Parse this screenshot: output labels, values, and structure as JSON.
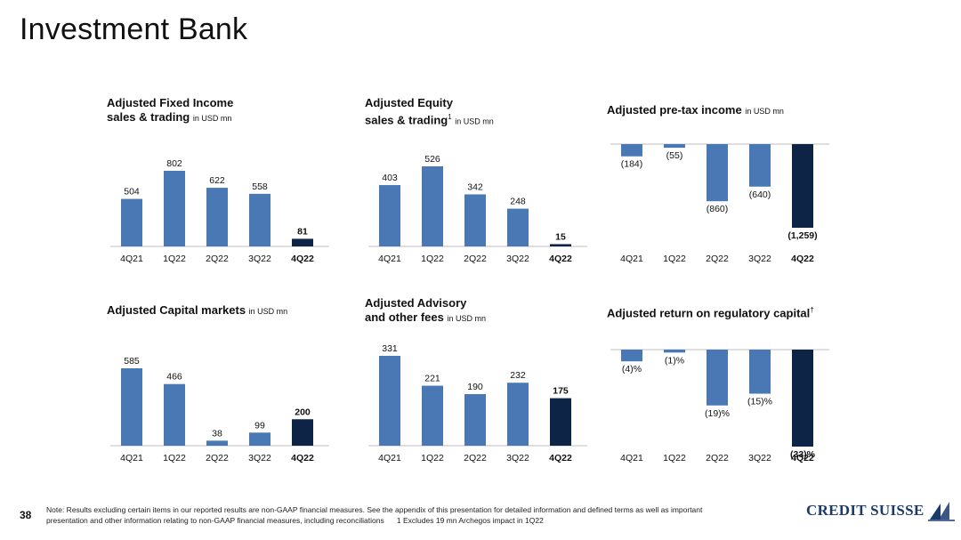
{
  "page": {
    "title": "Investment Bank",
    "page_number": "38",
    "footnote_line1": "Note: Results excluding certain items in our reported results are non-GAAP financial measures. See the appendix of this presentation for detailed information and defined terms as well as important",
    "footnote_line2": "presentation and other information relating to non-GAAP financial measures, including reconciliations      1 Excludes 19 mn Archegos impact in 1Q22",
    "logo_text": "CREDIT SUISSE"
  },
  "colors": {
    "bar": "#4a78b4",
    "highlight": "#0d2447",
    "axis": "#bfbfbf"
  },
  "chart_data": [
    {
      "id": "fixed-income",
      "type": "bar",
      "title_line1": "Adjusted Fixed Income",
      "title_line2": "sales & trading",
      "unit": "in USD mn",
      "categories": [
        "4Q21",
        "1Q22",
        "2Q22",
        "3Q22",
        "4Q22"
      ],
      "values": [
        504,
        802,
        622,
        558,
        81
      ],
      "labels": [
        "504",
        "802",
        "622",
        "558",
        "81"
      ],
      "highlight_index": 4
    },
    {
      "id": "equity",
      "type": "bar",
      "title_line1": "Adjusted Equity",
      "title_line2": "sales & trading",
      "title_sup": "1",
      "unit": "in USD mn",
      "categories": [
        "4Q21",
        "1Q22",
        "2Q22",
        "3Q22",
        "4Q22"
      ],
      "values": [
        403,
        526,
        342,
        248,
        15
      ],
      "labels": [
        "403",
        "526",
        "342",
        "248",
        "15"
      ],
      "highlight_index": 4
    },
    {
      "id": "pretax-income",
      "type": "bar",
      "title_line1": "Adjusted pre-tax income",
      "unit": "in USD mn",
      "categories": [
        "4Q21",
        "1Q22",
        "2Q22",
        "3Q22",
        "4Q22"
      ],
      "values": [
        -184,
        -55,
        -860,
        -640,
        -1259
      ],
      "labels": [
        "(184)",
        "(55)",
        "(860)",
        "(640)",
        "(1,259)"
      ],
      "highlight_index": 4
    },
    {
      "id": "capital-markets",
      "type": "bar",
      "title_line1": "Adjusted Capital markets",
      "unit": "in USD mn",
      "categories": [
        "4Q21",
        "1Q22",
        "2Q22",
        "3Q22",
        "4Q22"
      ],
      "values": [
        585,
        466,
        38,
        99,
        200
      ],
      "labels": [
        "585",
        "466",
        "38",
        "99",
        "200"
      ],
      "highlight_index": 4
    },
    {
      "id": "advisory",
      "type": "bar",
      "title_line1": "Adjusted Advisory",
      "title_line2": "and other fees",
      "unit": "in USD mn",
      "categories": [
        "4Q21",
        "1Q22",
        "2Q22",
        "3Q22",
        "4Q22"
      ],
      "values": [
        331,
        221,
        190,
        232,
        175
      ],
      "labels": [
        "331",
        "221",
        "190",
        "232",
        "175"
      ],
      "highlight_index": 4
    },
    {
      "id": "return-reg-capital",
      "type": "bar",
      "title_line1": "Adjusted return on regulatory capital",
      "title_sup": "†",
      "categories": [
        "4Q21",
        "1Q22",
        "2Q22",
        "3Q22",
        "4Q22"
      ],
      "values": [
        -4,
        -1,
        -19,
        -15,
        -33
      ],
      "labels": [
        "(4)%",
        "(1)%",
        "(19)%",
        "(15)%",
        "(33)%"
      ],
      "highlight_index": 4
    }
  ]
}
